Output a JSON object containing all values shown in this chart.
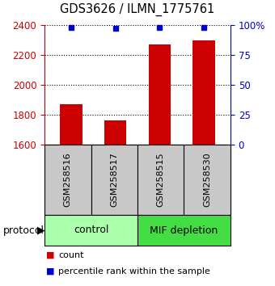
{
  "title": "GDS3626 / ILMN_1775761",
  "samples": [
    "GSM258516",
    "GSM258517",
    "GSM258515",
    "GSM258530"
  ],
  "counts": [
    1870,
    1760,
    2270,
    2300
  ],
  "percentile_ranks": [
    98,
    97,
    98,
    98
  ],
  "ylim_left": [
    1600,
    2400
  ],
  "ylim_right": [
    0,
    100
  ],
  "yticks_left": [
    1600,
    1800,
    2000,
    2200,
    2400
  ],
  "yticks_right": [
    0,
    25,
    50,
    75,
    100
  ],
  "ytick_right_labels": [
    "0",
    "25",
    "50",
    "75",
    "100%"
  ],
  "bar_color": "#cc0000",
  "dot_color": "#0000cc",
  "bar_width": 0.5,
  "groups": [
    {
      "label": "control",
      "samples": [
        0,
        1
      ],
      "color": "#aaffaa"
    },
    {
      "label": "MIF depletion",
      "samples": [
        2,
        3
      ],
      "color": "#44dd44"
    }
  ],
  "protocol_label": "protocol",
  "legend_items": [
    {
      "label": "count",
      "color": "#cc0000"
    },
    {
      "label": "percentile rank within the sample",
      "color": "#0000cc"
    }
  ],
  "background_color": "#ffffff",
  "label_area_bg": "#c8c8c8"
}
